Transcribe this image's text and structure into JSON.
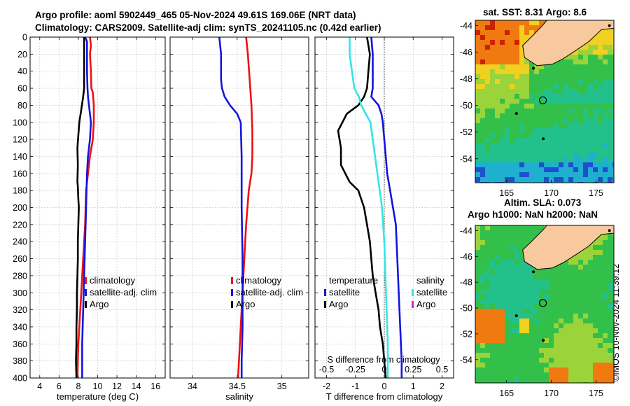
{
  "titles": {
    "line1": "Argo profile: aoml 5902449_465 05-Nov-2024 49.61S 169.06E (NRT data)",
    "line2": "Climatology: CARS2009. Satellite-adj clim: synTS_20241105.nc (0.42d earlier)",
    "sst_map": "sat. SST: 8.31 Argo: 8.6",
    "sla_map_1": "Altim. SLA: 0.073",
    "sla_map_2": "Argo h1000: NaN h2000: NaN"
  },
  "credit": "©IMOS 10-Nov-2024 11:39:12",
  "colors": {
    "climatology": "#ee1111",
    "satellite": "#1515dd",
    "argo": "#000000",
    "s_satellite": "#33e6e6",
    "s_argo": "#dd22cc",
    "land": "#f7c99c"
  },
  "chart_data": [
    {
      "type": "line",
      "id": "temperature",
      "xlabel": "temperature (deg C)",
      "ylabel": "",
      "xlim": [
        3,
        17
      ],
      "ylim": [
        400,
        0
      ],
      "xticks": [
        4,
        6,
        8,
        10,
        12,
        14,
        16
      ],
      "yticks": [
        0,
        20,
        40,
        60,
        80,
        100,
        120,
        140,
        160,
        180,
        200,
        220,
        240,
        260,
        280,
        300,
        320,
        340,
        360,
        380,
        400
      ],
      "grid": true,
      "legend": [
        "climatology",
        "satellite-adj. clim",
        "Argo"
      ],
      "series": [
        {
          "name": "climatology",
          "color": "#ee1111",
          "points": [
            [
              9.2,
              0
            ],
            [
              9.3,
              10
            ],
            [
              9.2,
              20
            ],
            [
              9.3,
              40
            ],
            [
              9.35,
              60
            ],
            [
              9.5,
              65
            ],
            [
              9.6,
              80
            ],
            [
              9.6,
              100
            ],
            [
              9.5,
              120
            ],
            [
              9.2,
              140
            ],
            [
              9.0,
              160
            ],
            [
              8.8,
              180
            ],
            [
              8.75,
              200
            ],
            [
              8.7,
              220
            ],
            [
              8.6,
              240
            ],
            [
              8.5,
              260
            ],
            [
              8.4,
              280
            ],
            [
              8.3,
              300
            ],
            [
              8.2,
              320
            ],
            [
              8.1,
              340
            ],
            [
              8.0,
              360
            ],
            [
              7.95,
              380
            ],
            [
              7.9,
              400
            ]
          ]
        },
        {
          "name": "satellite-adj. clim",
          "color": "#1515dd",
          "points": [
            [
              8.7,
              0
            ],
            [
              8.9,
              5
            ],
            [
              8.9,
              20
            ],
            [
              8.9,
              40
            ],
            [
              8.95,
              60
            ],
            [
              9.0,
              70
            ],
            [
              9.1,
              80
            ],
            [
              9.3,
              100
            ],
            [
              9.2,
              120
            ],
            [
              9.0,
              140
            ],
            [
              8.9,
              160
            ],
            [
              8.85,
              180
            ],
            [
              8.8,
              200
            ],
            [
              8.75,
              220
            ],
            [
              8.7,
              240
            ],
            [
              8.65,
              260
            ],
            [
              8.6,
              280
            ],
            [
              8.55,
              300
            ],
            [
              8.5,
              320
            ],
            [
              8.45,
              340
            ],
            [
              8.4,
              360
            ],
            [
              8.4,
              380
            ],
            [
              8.4,
              400
            ]
          ]
        },
        {
          "name": "Argo",
          "color": "#000000",
          "points": [
            [
              8.6,
              0
            ],
            [
              8.6,
              20
            ],
            [
              8.6,
              40
            ],
            [
              8.6,
              60
            ],
            [
              8.5,
              70
            ],
            [
              8.3,
              85
            ],
            [
              8.1,
              100
            ],
            [
              8.0,
              115
            ],
            [
              7.9,
              130
            ],
            [
              7.95,
              150
            ],
            [
              7.9,
              170
            ],
            [
              7.95,
              175
            ],
            [
              8.0,
              190
            ],
            [
              8.05,
              200
            ],
            [
              8.0,
              220
            ],
            [
              7.95,
              240
            ],
            [
              7.95,
              260
            ],
            [
              7.9,
              280
            ],
            [
              7.85,
              300
            ],
            [
              7.85,
              320
            ],
            [
              7.8,
              340
            ],
            [
              7.8,
              360
            ],
            [
              7.75,
              380
            ],
            [
              7.8,
              400
            ]
          ]
        }
      ]
    },
    {
      "type": "line",
      "id": "salinity",
      "xlabel": "salinity",
      "ylabel": "",
      "xlim": [
        33.75,
        35.3
      ],
      "ylim": [
        400,
        0
      ],
      "xticks": [
        34,
        34.5,
        35
      ],
      "xtick_labels": [
        "34",
        "34.5",
        "35"
      ],
      "grid": true,
      "legend": [
        "climatology",
        "satellite-adj. clim",
        "Argo"
      ],
      "series": [
        {
          "name": "climatology",
          "color": "#ee1111",
          "points": [
            [
              34.6,
              0
            ],
            [
              34.62,
              20
            ],
            [
              34.64,
              50
            ],
            [
              34.66,
              80
            ],
            [
              34.67,
              110
            ],
            [
              34.67,
              140
            ],
            [
              34.66,
              160
            ],
            [
              34.63,
              180
            ],
            [
              34.6,
              220
            ],
            [
              34.58,
              260
            ],
            [
              34.56,
              300
            ],
            [
              34.54,
              340
            ],
            [
              34.52,
              380
            ],
            [
              34.51,
              400
            ]
          ]
        },
        {
          "name": "satellite-adj. clim",
          "color": "#1515dd",
          "points": [
            [
              34.3,
              0
            ],
            [
              34.32,
              20
            ],
            [
              34.32,
              50
            ],
            [
              34.33,
              60
            ],
            [
              34.36,
              70
            ],
            [
              34.42,
              80
            ],
            [
              34.5,
              90
            ],
            [
              34.54,
              100
            ],
            [
              34.55,
              140
            ],
            [
              34.55,
              200
            ],
            [
              34.56,
              260
            ],
            [
              34.56,
              300
            ],
            [
              34.56,
              340
            ],
            [
              34.55,
              380
            ],
            [
              34.55,
              400
            ]
          ]
        }
      ]
    },
    {
      "type": "line",
      "id": "difference",
      "xlabel": "T difference from climatology",
      "x2label": "S difference from climatology",
      "xlim": [
        -2.4,
        2.4
      ],
      "ylim": [
        400,
        0
      ],
      "xticks": [
        -2,
        -1,
        0,
        1,
        2
      ],
      "x2lim": [
        -0.6,
        0.6
      ],
      "x2ticks": [
        -0.5,
        -0.25,
        0,
        0.25,
        0.5
      ],
      "x2tick_labels": [
        "-0.5",
        "-0.25",
        "0",
        "0.25",
        "0.5"
      ],
      "grid": true,
      "legend_left": [
        "temperature",
        "satellite",
        "Argo"
      ],
      "legend_right": [
        "salinity",
        "satellite",
        "Argo"
      ],
      "series": [
        {
          "name": "T satellite",
          "axis": "T",
          "color": "#1515dd",
          "points": [
            [
              -0.45,
              0
            ],
            [
              -0.4,
              20
            ],
            [
              -0.4,
              40
            ],
            [
              -0.4,
              60
            ],
            [
              -0.45,
              70
            ],
            [
              -0.2,
              80
            ],
            [
              -0.1,
              90
            ],
            [
              -0.05,
              100
            ],
            [
              0.0,
              120
            ],
            [
              0.05,
              140
            ],
            [
              0.1,
              160
            ],
            [
              0.2,
              180
            ],
            [
              0.3,
              200
            ],
            [
              0.4,
              220
            ],
            [
              0.45,
              260
            ],
            [
              0.5,
              300
            ],
            [
              0.55,
              340
            ],
            [
              0.6,
              380
            ],
            [
              0.6,
              400
            ]
          ]
        },
        {
          "name": "T Argo",
          "axis": "T",
          "color": "#000000",
          "points": [
            [
              -0.6,
              0
            ],
            [
              -0.5,
              20
            ],
            [
              -0.55,
              40
            ],
            [
              -0.6,
              60
            ],
            [
              -0.7,
              70
            ],
            [
              -0.9,
              80
            ],
            [
              -1.3,
              90
            ],
            [
              -1.6,
              110
            ],
            [
              -1.5,
              130
            ],
            [
              -1.5,
              150
            ],
            [
              -1.2,
              170
            ],
            [
              -0.9,
              180
            ],
            [
              -0.7,
              200
            ],
            [
              -0.6,
              220
            ],
            [
              -0.5,
              240
            ],
            [
              -0.45,
              260
            ],
            [
              -0.4,
              280
            ],
            [
              -0.3,
              300
            ],
            [
              -0.2,
              320
            ],
            [
              -0.15,
              340
            ],
            [
              -0.05,
              360
            ],
            [
              0.0,
              380
            ],
            [
              0.05,
              400
            ]
          ]
        },
        {
          "name": "S satellite",
          "axis": "S",
          "color": "#33e6e6",
          "points": [
            [
              -0.3,
              0
            ],
            [
              -0.3,
              20
            ],
            [
              -0.28,
              40
            ],
            [
              -0.26,
              60
            ],
            [
              -0.22,
              70
            ],
            [
              -0.2,
              80
            ],
            [
              -0.16,
              90
            ],
            [
              -0.12,
              100
            ],
            [
              -0.1,
              120
            ],
            [
              -0.08,
              140
            ],
            [
              -0.06,
              160
            ],
            [
              -0.04,
              180
            ],
            [
              -0.02,
              200
            ],
            [
              0.0,
              240
            ],
            [
              0.01,
              280
            ],
            [
              0.02,
              320
            ],
            [
              0.03,
              360
            ],
            [
              0.03,
              400
            ]
          ]
        }
      ]
    },
    {
      "type": "heatmap",
      "id": "sst_map",
      "title": "sat. SST: 8.31 Argo: 8.6",
      "xlim": [
        161.5,
        177
      ],
      "ylim": [
        -55.8,
        -43.6
      ],
      "xticks": [
        165,
        170,
        175
      ],
      "yticks": [
        -44,
        -46,
        -48,
        -50,
        -52,
        -54
      ],
      "float_position": [
        169.06,
        -49.61
      ]
    },
    {
      "type": "heatmap",
      "id": "sla_map",
      "title": "Altim. SLA: 0.073",
      "subtitle": "Argo h1000: NaN h2000: NaN",
      "xlim": [
        161.5,
        177
      ],
      "ylim": [
        -55.8,
        -43.6
      ],
      "xticks": [
        165,
        170,
        175
      ],
      "yticks": [
        -44,
        -46,
        -48,
        -50,
        -52,
        -54
      ],
      "float_position": [
        169.06,
        -49.61
      ]
    }
  ]
}
